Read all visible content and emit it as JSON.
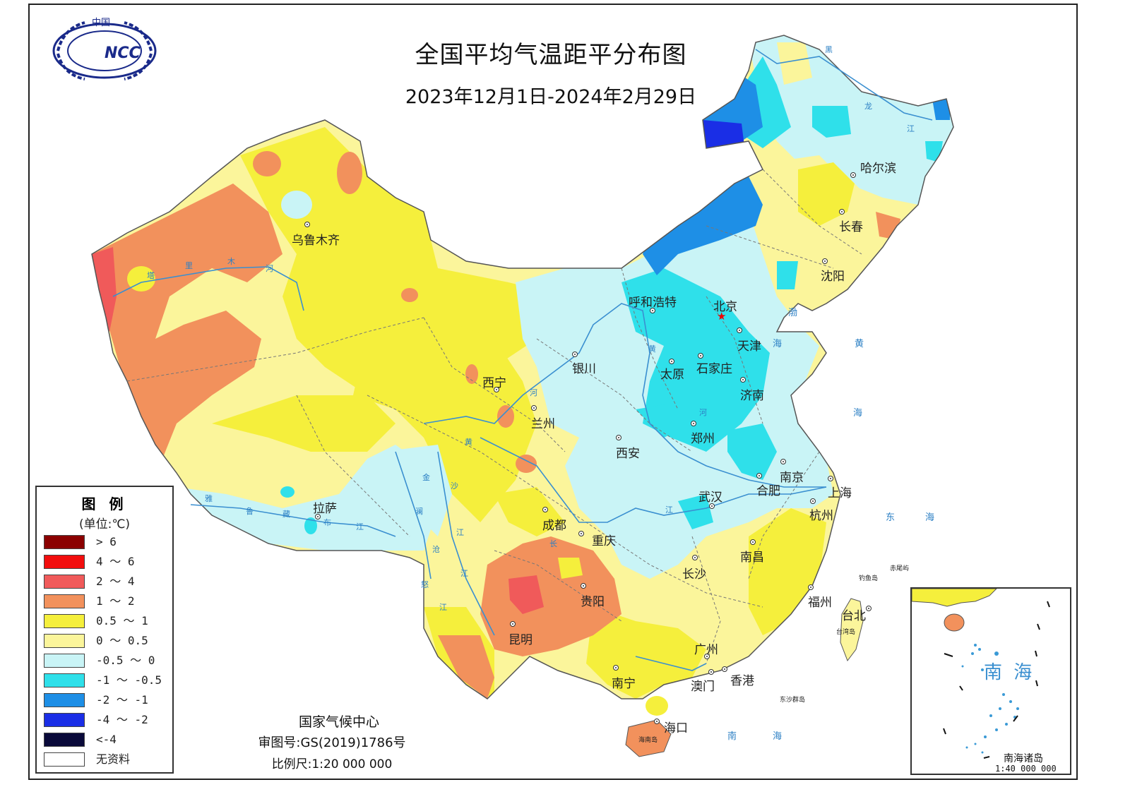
{
  "map": {
    "title": "全国平均气温距平分布图",
    "subtitle": "2023年12月1日-2024年2月29日",
    "logo_text": "中国",
    "logo_abbr": "NCC"
  },
  "legend": {
    "title": "图 例",
    "unit": "(单位:℃)",
    "items": [
      {
        "label": "> 6",
        "color": "#8b0000"
      },
      {
        "label": "4 ～ 6",
        "color": "#f20d0d"
      },
      {
        "label": "2 ～ 4",
        "color": "#f05a5a"
      },
      {
        "label": "1 ～ 2",
        "color": "#f2915c"
      },
      {
        "label": "0.5 ～ 1",
        "color": "#f5ef3c"
      },
      {
        "label": "0 ～ 0.5",
        "color": "#fbf59b"
      },
      {
        "label": "-0.5 ～ 0",
        "color": "#c9f4f6"
      },
      {
        "label": "-1 ～ -0.5",
        "color": "#2fe0ea"
      },
      {
        "label": "-2 ～ -1",
        "color": "#1e8fe6"
      },
      {
        "label": "-4 ～ -2",
        "color": "#1a2ee6"
      },
      {
        "label": "<-4",
        "color": "#0a0a3a"
      },
      {
        "label": "无资料",
        "color": "#ffffff"
      }
    ]
  },
  "credits": {
    "org": "国家气候中心",
    "review": "审图号:GS(2019)1786号",
    "scale": "比例尺:1:20 000 000"
  },
  "inset": {
    "sea_name": "南 海",
    "caption": "南海诸岛",
    "scale": "1:40 000 000"
  },
  "cities": {
    "urumqi": "乌鲁木齐",
    "harbin": "哈尔滨",
    "changchun": "长春",
    "shenyang": "沈阳",
    "hohhot": "呼和浩特",
    "beijing": "北京",
    "tianjin": "天津",
    "shijiazhuang": "石家庄",
    "taiyuan": "太原",
    "jinan": "济南",
    "yinchuan": "银川",
    "xining": "西宁",
    "lanzhou": "兰州",
    "zhengzhou": "郑州",
    "xian": "西安",
    "nanjing": "南京",
    "hefei": "合肥",
    "shanghai": "上海",
    "hangzhou": "杭州",
    "wuhan": "武汉",
    "lhasa": "拉萨",
    "chengdu": "成都",
    "chongqing": "重庆",
    "nanchang": "南昌",
    "changsha": "长沙",
    "fuzhou": "福州",
    "taipei": "台北",
    "guiyang": "贵阳",
    "kunming": "昆明",
    "guangzhou": "广州",
    "nanning": "南宁",
    "macau": "澳门",
    "hongkong": "香港",
    "haikou": "海口"
  },
  "seas": {
    "bohai": "渤",
    "bohai2": "海",
    "yellow1": "黄",
    "yellow2": "海",
    "east1": "东",
    "east2": "海",
    "south1": "南",
    "south2": "海"
  },
  "rivers": {
    "tarim": [
      "塔",
      "里",
      "木",
      "河"
    ],
    "yarlung": [
      "雅",
      "鲁",
      "藏",
      "布",
      "江"
    ],
    "yellow": [
      "黄",
      "河"
    ],
    "yellow2": [
      "黄",
      "河"
    ],
    "jinsha": [
      "金",
      "沙",
      "江"
    ],
    "lancang": [
      "澜",
      "沧",
      "江"
    ],
    "nu": [
      "怒",
      "江"
    ],
    "yangtze": [
      "长",
      "江"
    ],
    "heilong": [
      "黑",
      "龙",
      "江"
    ]
  },
  "islands": {
    "diaoyu": "钓鱼岛",
    "chiwei": "赤尾屿",
    "taiwan": "台湾岛",
    "hainan": "海南岛",
    "dongsha": "东沙群岛"
  }
}
